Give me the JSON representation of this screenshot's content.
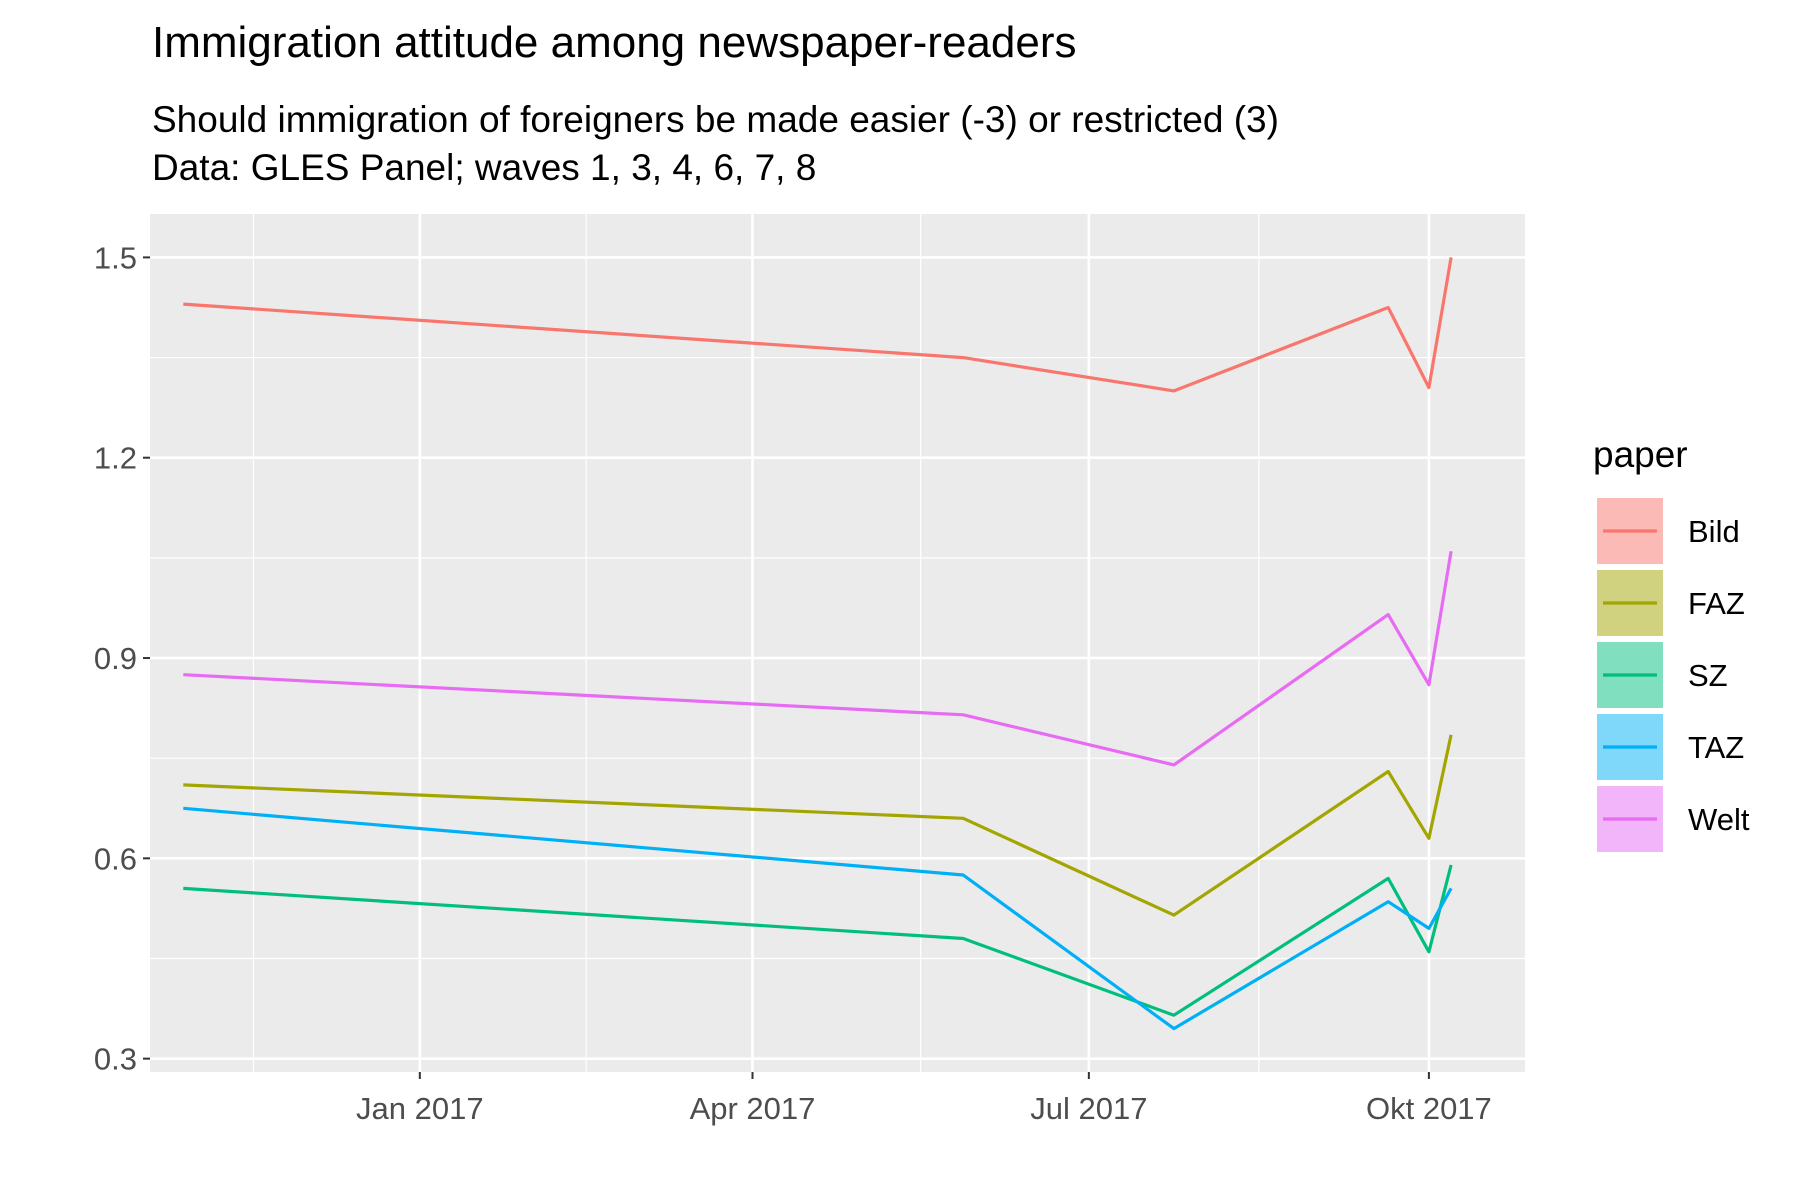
{
  "chart_data": {
    "type": "line",
    "title": "Immigration attitude among newspaper-readers",
    "subtitle_lines": [
      "Should immigration of foreigners be made easier (-3) or restricted (3)",
      "Data: GLES Panel; waves 1, 3, 4, 6, 7, 8"
    ],
    "xlabel": "",
    "ylabel": "",
    "x_tick_labels": [
      "Jan 2017",
      "Apr 2017",
      "Jul 2017",
      "Okt 2017"
    ],
    "x_tick_dates": [
      "2017-01-01",
      "2017-04-01",
      "2017-07-01",
      "2017-10-01"
    ],
    "xlim": [
      "2016-10-20",
      "2017-10-27"
    ],
    "y_ticks": [
      "0.3",
      "0.6",
      "0.9",
      "1.2",
      "1.5"
    ],
    "ylim": [
      0.28,
      1.565
    ],
    "grid": true,
    "legend": {
      "title": "paper",
      "position": "right"
    },
    "x": [
      "2016-10-29",
      "2017-05-28",
      "2017-07-24",
      "2017-09-20",
      "2017-10-01",
      "2017-10-07"
    ],
    "series": [
      {
        "name": "Bild",
        "color": "#F8766D",
        "values": [
          1.43,
          1.35,
          1.3,
          1.425,
          1.305,
          1.5
        ]
      },
      {
        "name": "FAZ",
        "color": "#A3A500",
        "values": [
          0.71,
          0.66,
          0.515,
          0.73,
          0.63,
          0.785
        ]
      },
      {
        "name": "SZ",
        "color": "#00BF7D",
        "values": [
          0.555,
          0.48,
          0.365,
          0.57,
          0.46,
          0.59
        ]
      },
      {
        "name": "TAZ",
        "color": "#00B0F6",
        "values": [
          0.675,
          0.575,
          0.345,
          0.535,
          0.495,
          0.555
        ]
      },
      {
        "name": "Welt",
        "color": "#E76BF3",
        "values": [
          0.875,
          0.815,
          0.74,
          0.965,
          0.86,
          1.06
        ]
      }
    ]
  }
}
